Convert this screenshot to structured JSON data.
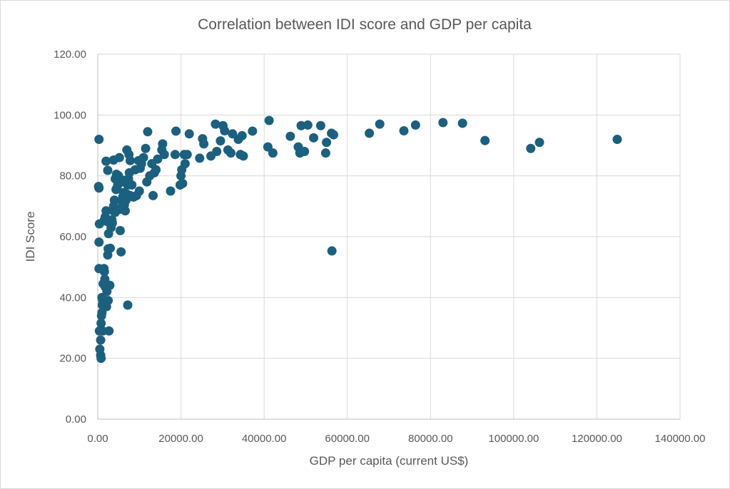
{
  "chart_data": {
    "type": "scatter",
    "title": "Correlation between IDI score and GDP per capita",
    "xlabel": "GDP per capita (current US$)",
    "ylabel": "IDI Score",
    "xlim": [
      0,
      140000
    ],
    "ylim": [
      0,
      120
    ],
    "x_ticks": [
      "0.00",
      "20000.00",
      "40000.00",
      "60000.00",
      "80000.00",
      "100000.00",
      "120000.00",
      "140000.00"
    ],
    "y_ticks": [
      "0.00",
      "20.00",
      "40.00",
      "60.00",
      "80.00",
      "100.00",
      "120.00"
    ],
    "grid": true,
    "legend": "none",
    "marker_color": "#1b607f",
    "points": [
      [
        300,
        92.0
      ],
      [
        200,
        76.5
      ],
      [
        300,
        76.0
      ],
      [
        400,
        64.2
      ],
      [
        300,
        58.2
      ],
      [
        300,
        49.5
      ],
      [
        400,
        29.0
      ],
      [
        500,
        23.0
      ],
      [
        700,
        21.0
      ],
      [
        800,
        20.0
      ],
      [
        700,
        26.0
      ],
      [
        800,
        31.5
      ],
      [
        900,
        34.0
      ],
      [
        1000,
        35.0
      ],
      [
        1100,
        37.5
      ],
      [
        1200,
        39.0
      ],
      [
        1000,
        40.0
      ],
      [
        1300,
        44.5
      ],
      [
        1500,
        49.5
      ],
      [
        1600,
        48.5
      ],
      [
        1700,
        46.0
      ],
      [
        1800,
        43.5
      ],
      [
        2000,
        44.0
      ],
      [
        2100,
        37.0
      ],
      [
        2200,
        42.0
      ],
      [
        2500,
        39.0
      ],
      [
        2700,
        29.0
      ],
      [
        2900,
        44.0
      ],
      [
        1200,
        29.0
      ],
      [
        1600,
        65.5
      ],
      [
        1800,
        66.5
      ],
      [
        2000,
        68.5
      ],
      [
        2200,
        65.0
      ],
      [
        2400,
        54.0
      ],
      [
        2500,
        56.0
      ],
      [
        2600,
        61.0
      ],
      [
        3000,
        56.2
      ],
      [
        3200,
        63.0
      ],
      [
        3400,
        65.5
      ],
      [
        3500,
        64.5
      ],
      [
        3700,
        68.5
      ],
      [
        3800,
        70.0
      ],
      [
        4000,
        72.0
      ],
      [
        4200,
        68.0
      ],
      [
        4400,
        75.5
      ],
      [
        4600,
        76.0
      ],
      [
        4800,
        77.0
      ],
      [
        5000,
        78.0
      ],
      [
        5200,
        69.0
      ],
      [
        5400,
        62.0
      ],
      [
        5600,
        55.0
      ],
      [
        5800,
        71.5
      ],
      [
        6000,
        73.0
      ],
      [
        6200,
        74.5
      ],
      [
        6400,
        70.5
      ],
      [
        6600,
        68.5
      ],
      [
        6800,
        72.0
      ],
      [
        7000,
        74.0
      ],
      [
        7200,
        77.0
      ],
      [
        7400,
        79.0
      ],
      [
        7600,
        81.0
      ],
      [
        7800,
        73.5
      ],
      [
        7200,
        37.5
      ],
      [
        2000,
        84.8
      ],
      [
        2400,
        81.8
      ],
      [
        3800,
        85.2
      ],
      [
        4200,
        79.0
      ],
      [
        4500,
        80.5
      ],
      [
        5000,
        80.0
      ],
      [
        5200,
        86.0
      ],
      [
        6000,
        78.0
      ],
      [
        6500,
        78.5
      ],
      [
        7000,
        88.5
      ],
      [
        7500,
        87.0
      ],
      [
        7800,
        85.0
      ],
      [
        8200,
        77.0
      ],
      [
        8600,
        73.0
      ],
      [
        9000,
        82.0
      ],
      [
        9300,
        73.5
      ],
      [
        9800,
        85.0
      ],
      [
        10000,
        75.0
      ],
      [
        10200,
        82.5
      ],
      [
        10500,
        84.0
      ],
      [
        11000,
        86.0
      ],
      [
        11500,
        89.0
      ],
      [
        11800,
        78.0
      ],
      [
        12000,
        94.5
      ],
      [
        12500,
        80.0
      ],
      [
        13000,
        84.0
      ],
      [
        13300,
        73.5
      ],
      [
        13600,
        81.0
      ],
      [
        14000,
        82.0
      ],
      [
        14400,
        85.5
      ],
      [
        15400,
        88.5
      ],
      [
        15600,
        90.5
      ],
      [
        16000,
        87.0
      ],
      [
        17500,
        75.0
      ],
      [
        18600,
        87.0
      ],
      [
        18800,
        94.7
      ],
      [
        19800,
        77.0
      ],
      [
        20000,
        80.0
      ],
      [
        20200,
        82.0
      ],
      [
        20400,
        77.5
      ],
      [
        20800,
        87.0
      ],
      [
        21000,
        84.0
      ],
      [
        21500,
        87.0
      ],
      [
        22000,
        93.8
      ],
      [
        24500,
        85.8
      ],
      [
        25200,
        92.2
      ],
      [
        25500,
        90.5
      ],
      [
        27200,
        86.5
      ],
      [
        28300,
        97.0
      ],
      [
        28600,
        88.0
      ],
      [
        29500,
        91.5
      ],
      [
        30100,
        96.5
      ],
      [
        30500,
        94.8
      ],
      [
        31300,
        88.5
      ],
      [
        32000,
        87.5
      ],
      [
        32400,
        93.8
      ],
      [
        33800,
        92.0
      ],
      [
        34300,
        87.0
      ],
      [
        34700,
        93.2
      ],
      [
        35000,
        86.5
      ],
      [
        37200,
        94.7
      ],
      [
        40900,
        89.5
      ],
      [
        41200,
        98.2
      ],
      [
        42100,
        87.5
      ],
      [
        46300,
        93.0
      ],
      [
        48200,
        89.5
      ],
      [
        48600,
        87.5
      ],
      [
        48900,
        96.5
      ],
      [
        49700,
        88.0
      ],
      [
        50500,
        96.7
      ],
      [
        51900,
        92.5
      ],
      [
        53600,
        96.5
      ],
      [
        54800,
        87.5
      ],
      [
        55000,
        91.0
      ],
      [
        56200,
        94.0
      ],
      [
        56700,
        93.5
      ],
      [
        56300,
        55.3
      ],
      [
        65300,
        94.0
      ],
      [
        67800,
        97.0
      ],
      [
        73600,
        94.8
      ],
      [
        76400,
        96.7
      ],
      [
        83000,
        97.5
      ],
      [
        87700,
        97.3
      ],
      [
        93100,
        91.6
      ],
      [
        104100,
        89.0
      ],
      [
        106200,
        91.0
      ],
      [
        124900,
        92.0
      ]
    ]
  }
}
